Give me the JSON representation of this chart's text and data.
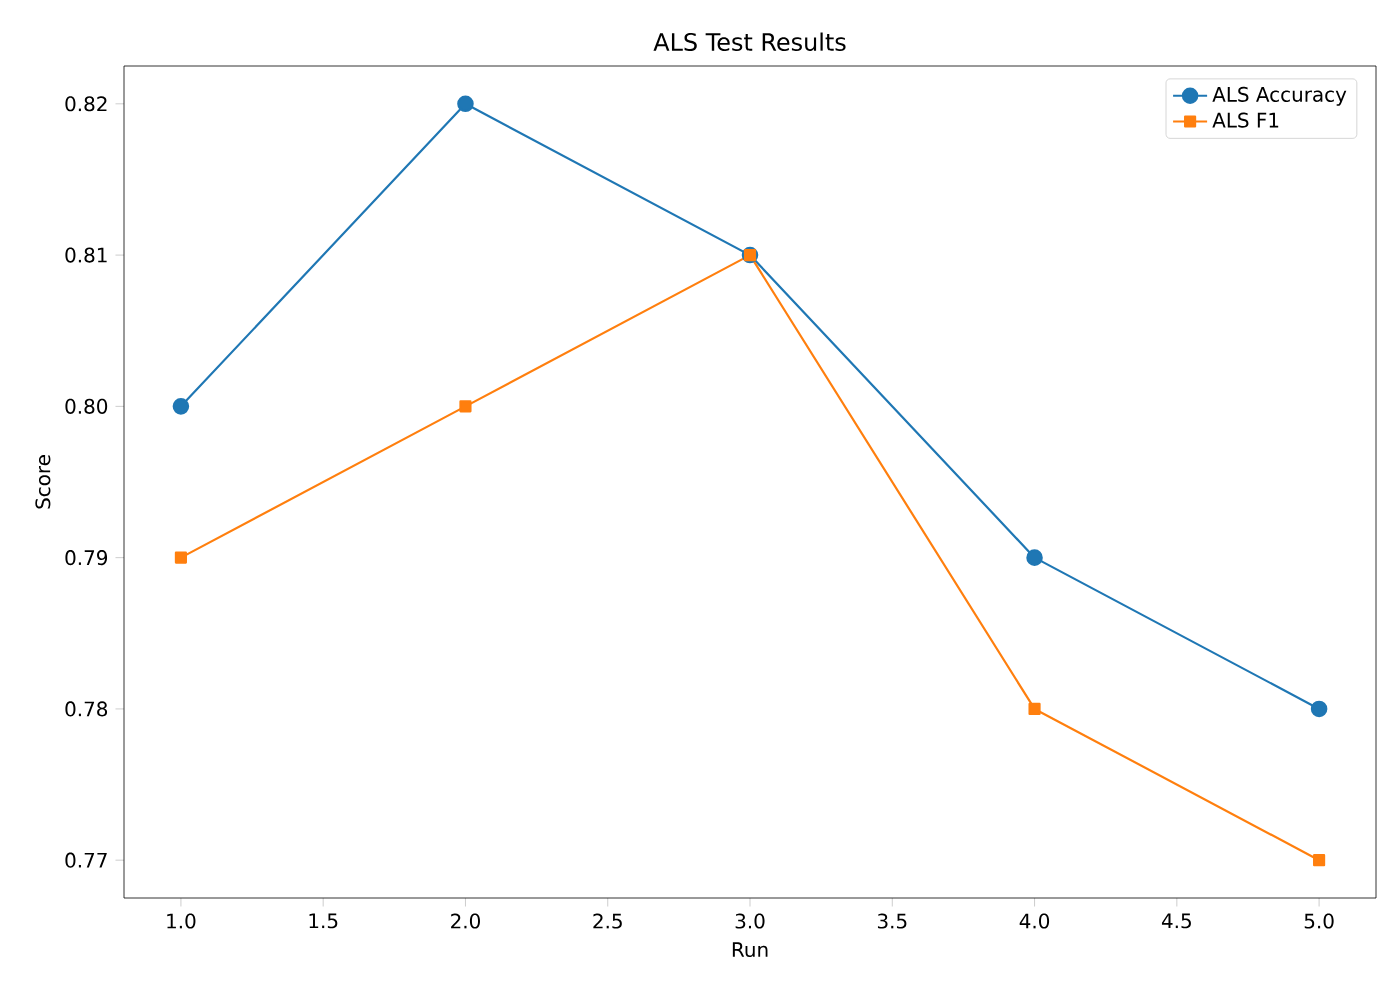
{
  "chart_data": {
    "type": "line",
    "title": "ALS Test Results",
    "xlabel": "Run",
    "ylabel": "Score",
    "x": [
      1,
      2,
      3,
      4,
      5
    ],
    "series": [
      {
        "name": "ALS Accuracy",
        "color": "#1f77b4",
        "marker": "circle",
        "values": [
          0.8,
          0.82,
          0.81,
          0.79,
          0.78
        ]
      },
      {
        "name": "ALS F1",
        "color": "#ff7f0e",
        "marker": "square",
        "values": [
          0.79,
          0.8,
          0.81,
          0.78,
          0.77
        ]
      }
    ],
    "xlim": [
      0.8,
      5.2
    ],
    "ylim": [
      0.7675,
      0.8225
    ],
    "xticks": [
      {
        "value": 1,
        "label": "1.0"
      },
      {
        "value": 1.5,
        "label": "1.5"
      },
      {
        "value": 2,
        "label": "2.0"
      },
      {
        "value": 2.5,
        "label": "2.5"
      },
      {
        "value": 3,
        "label": "3.0"
      },
      {
        "value": 3.5,
        "label": "3.5"
      },
      {
        "value": 4,
        "label": "4.0"
      },
      {
        "value": 4.5,
        "label": "4.5"
      },
      {
        "value": 5,
        "label": "5.0"
      }
    ],
    "yticks": [
      0.77,
      0.78,
      0.79,
      {
        "value": 0.8,
        "label": "0.80"
      },
      0.81,
      0.82
    ],
    "legend": "top right",
    "grid": false,
    "line_style": "solid"
  }
}
